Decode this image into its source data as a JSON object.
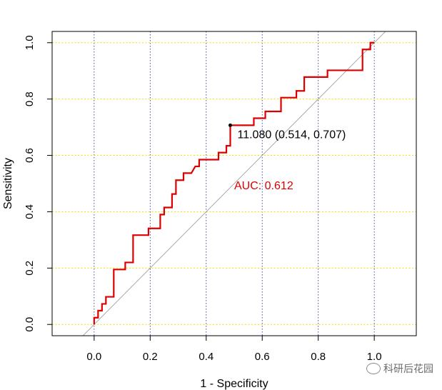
{
  "chart_data": {
    "type": "line",
    "title": "",
    "xlabel": "1 - Specificity",
    "ylabel": "Sensitivity",
    "xlim": [
      -0.15,
      1.15
    ],
    "ylim": [
      -0.04,
      1.04
    ],
    "x_ticks": [
      0.0,
      0.2,
      0.4,
      0.6,
      0.8,
      1.0
    ],
    "x_tick_labels": [
      "0.0",
      "0.2",
      "0.4",
      "0.6",
      "0.8",
      "1.0"
    ],
    "y_ticks": [
      0.0,
      0.2,
      0.4,
      0.6,
      0.8,
      1.0
    ],
    "y_tick_labels": [
      "0.0",
      "0.2",
      "0.4",
      "0.6",
      "0.8",
      "1.0"
    ],
    "vertical_grid": "dotted navy",
    "horizontal_grid": "dotted yellow",
    "series": [
      {
        "name": "ROC",
        "color": "#dd0000",
        "points": [
          [
            0.0,
            0.0
          ],
          [
            0.0,
            0.024
          ],
          [
            0.014,
            0.024
          ],
          [
            0.014,
            0.049
          ],
          [
            0.028,
            0.049
          ],
          [
            0.028,
            0.073
          ],
          [
            0.042,
            0.073
          ],
          [
            0.042,
            0.098
          ],
          [
            0.07,
            0.098
          ],
          [
            0.07,
            0.195
          ],
          [
            0.111,
            0.195
          ],
          [
            0.111,
            0.22
          ],
          [
            0.139,
            0.22
          ],
          [
            0.139,
            0.317
          ],
          [
            0.194,
            0.317
          ],
          [
            0.194,
            0.341
          ],
          [
            0.236,
            0.341
          ],
          [
            0.236,
            0.39
          ],
          [
            0.25,
            0.39
          ],
          [
            0.25,
            0.415
          ],
          [
            0.278,
            0.415
          ],
          [
            0.278,
            0.463
          ],
          [
            0.292,
            0.463
          ],
          [
            0.292,
            0.512
          ],
          [
            0.319,
            0.512
          ],
          [
            0.319,
            0.537
          ],
          [
            0.347,
            0.537
          ],
          [
            0.361,
            0.561
          ],
          [
            0.375,
            0.561
          ],
          [
            0.375,
            0.585
          ],
          [
            0.444,
            0.585
          ],
          [
            0.444,
            0.61
          ],
          [
            0.472,
            0.61
          ],
          [
            0.472,
            0.634
          ],
          [
            0.486,
            0.634
          ],
          [
            0.486,
            0.707
          ],
          [
            0.57,
            0.707
          ],
          [
            0.57,
            0.732
          ],
          [
            0.611,
            0.732
          ],
          [
            0.611,
            0.756
          ],
          [
            0.667,
            0.756
          ],
          [
            0.667,
            0.805
          ],
          [
            0.722,
            0.805
          ],
          [
            0.722,
            0.829
          ],
          [
            0.75,
            0.829
          ],
          [
            0.75,
            0.878
          ],
          [
            0.833,
            0.878
          ],
          [
            0.833,
            0.902
          ],
          [
            0.958,
            0.902
          ],
          [
            0.958,
            0.976
          ],
          [
            0.986,
            0.976
          ],
          [
            0.986,
            1.0
          ],
          [
            1.0,
            1.0
          ]
        ]
      }
    ],
    "reference_line": {
      "from": [
        -0.15,
        -0.15
      ],
      "to": [
        1.15,
        1.15
      ],
      "color": "#a0a0a0"
    },
    "best_threshold": {
      "x": 0.486,
      "y": 0.707,
      "label": "11.080 (0.514, 0.707)"
    },
    "auc_label": "AUC: 0.612",
    "auc_color": "#dd0000"
  },
  "watermark": {
    "text": "科研后花园",
    "icon": "wechat-icon"
  }
}
